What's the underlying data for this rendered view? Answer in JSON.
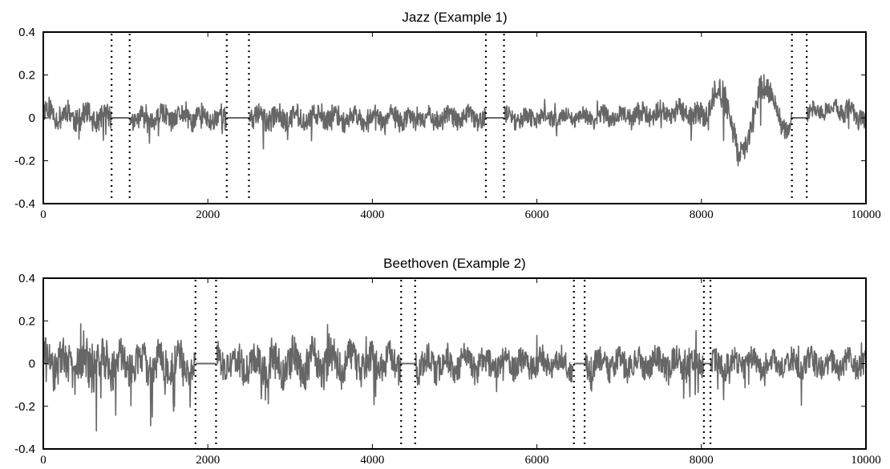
{
  "chart_data": [
    {
      "type": "line",
      "title": "Jazz (Example 1)",
      "xlabel": "",
      "ylabel": "",
      "xlim": [
        0,
        10000
      ],
      "ylim": [
        -0.4,
        0.4
      ],
      "xticks": [
        0,
        2000,
        4000,
        6000,
        8000,
        10000
      ],
      "yticks": [
        -0.4,
        -0.2,
        0,
        0.2,
        0.4
      ],
      "xtick_labels": [
        "0",
        "2000",
        "4000",
        "6000",
        "8000",
        "10000"
      ],
      "ytick_labels": [
        "-0.4",
        "-0.2",
        "0",
        "0.2",
        "0.4"
      ],
      "grid": false,
      "line_color": "#666666",
      "gaps": [
        [
          830,
          1050
        ],
        [
          2230,
          2500
        ],
        [
          5380,
          5600
        ],
        [
          9100,
          9280
        ]
      ],
      "markers": [
        830,
        1050,
        2230,
        2500,
        5380,
        5600,
        9100,
        9280
      ],
      "envelope": {
        "x": [
          0,
          500,
          1000,
          1500,
          2000,
          2500,
          3000,
          3500,
          4000,
          4500,
          5000,
          5500,
          6000,
          6500,
          7000,
          7500,
          7800,
          8000,
          8200,
          8300,
          8450,
          8600,
          8750,
          8850,
          9000,
          9300,
          9600,
          10000
        ],
        "y": [
          0.03,
          0.0,
          0.0,
          0.0,
          0.0,
          0.0,
          0.0,
          0.0,
          0.0,
          0.0,
          0.0,
          0.0,
          0.0,
          0.0,
          0.01,
          0.02,
          0.03,
          0.0,
          0.12,
          0.1,
          -0.2,
          -0.05,
          0.18,
          0.1,
          -0.05,
          0.02,
          0.05,
          0.0
        ],
        "amplitude": [
          0.1,
          0.1,
          0.08,
          0.09,
          0.09,
          0.1,
          0.09,
          0.09,
          0.08,
          0.08,
          0.08,
          0.08,
          0.07,
          0.07,
          0.08,
          0.08,
          0.09,
          0.1,
          0.12,
          0.14,
          0.1,
          0.08,
          0.12,
          0.1,
          0.08,
          0.07,
          0.07,
          0.1
        ]
      }
    },
    {
      "type": "line",
      "title": "Beethoven (Example 2)",
      "xlabel": "",
      "ylabel": "",
      "xlim": [
        0,
        10000
      ],
      "ylim": [
        -0.4,
        0.4
      ],
      "xticks": [
        0,
        2000,
        4000,
        6000,
        8000,
        10000
      ],
      "yticks": [
        -0.4,
        -0.2,
        0,
        0.2,
        0.4
      ],
      "xtick_labels": [
        "0",
        "2000",
        "4000",
        "6000",
        "8000",
        "10000"
      ],
      "ytick_labels": [
        "-0.4",
        "-0.2",
        "0",
        "0.2",
        "0.4"
      ],
      "grid": false,
      "line_color": "#666666",
      "gaps": [
        [
          1850,
          2100
        ],
        [
          4350,
          4520
        ],
        [
          6450,
          6580
        ],
        [
          8030,
          8110
        ]
      ],
      "markers": [
        1850,
        2100,
        4350,
        4520,
        6450,
        6580,
        8030,
        8110
      ],
      "envelope": {
        "x": [
          0,
          500,
          1000,
          1500,
          2000,
          2500,
          3000,
          3500,
          4000,
          4500,
          5000,
          5500,
          6000,
          6500,
          7000,
          7500,
          8000,
          8500,
          9000,
          9500,
          10000
        ],
        "y": [
          0.0,
          0.0,
          0.0,
          0.0,
          0.0,
          0.0,
          0.0,
          0.0,
          0.0,
          0.0,
          0.0,
          0.0,
          0.0,
          0.0,
          0.0,
          0.0,
          0.0,
          0.0,
          0.0,
          0.0,
          0.0
        ],
        "amplitude": [
          0.16,
          0.2,
          0.15,
          0.16,
          0.13,
          0.15,
          0.17,
          0.16,
          0.14,
          0.13,
          0.13,
          0.12,
          0.11,
          0.11,
          0.12,
          0.11,
          0.12,
          0.11,
          0.1,
          0.11,
          0.11
        ]
      }
    }
  ]
}
